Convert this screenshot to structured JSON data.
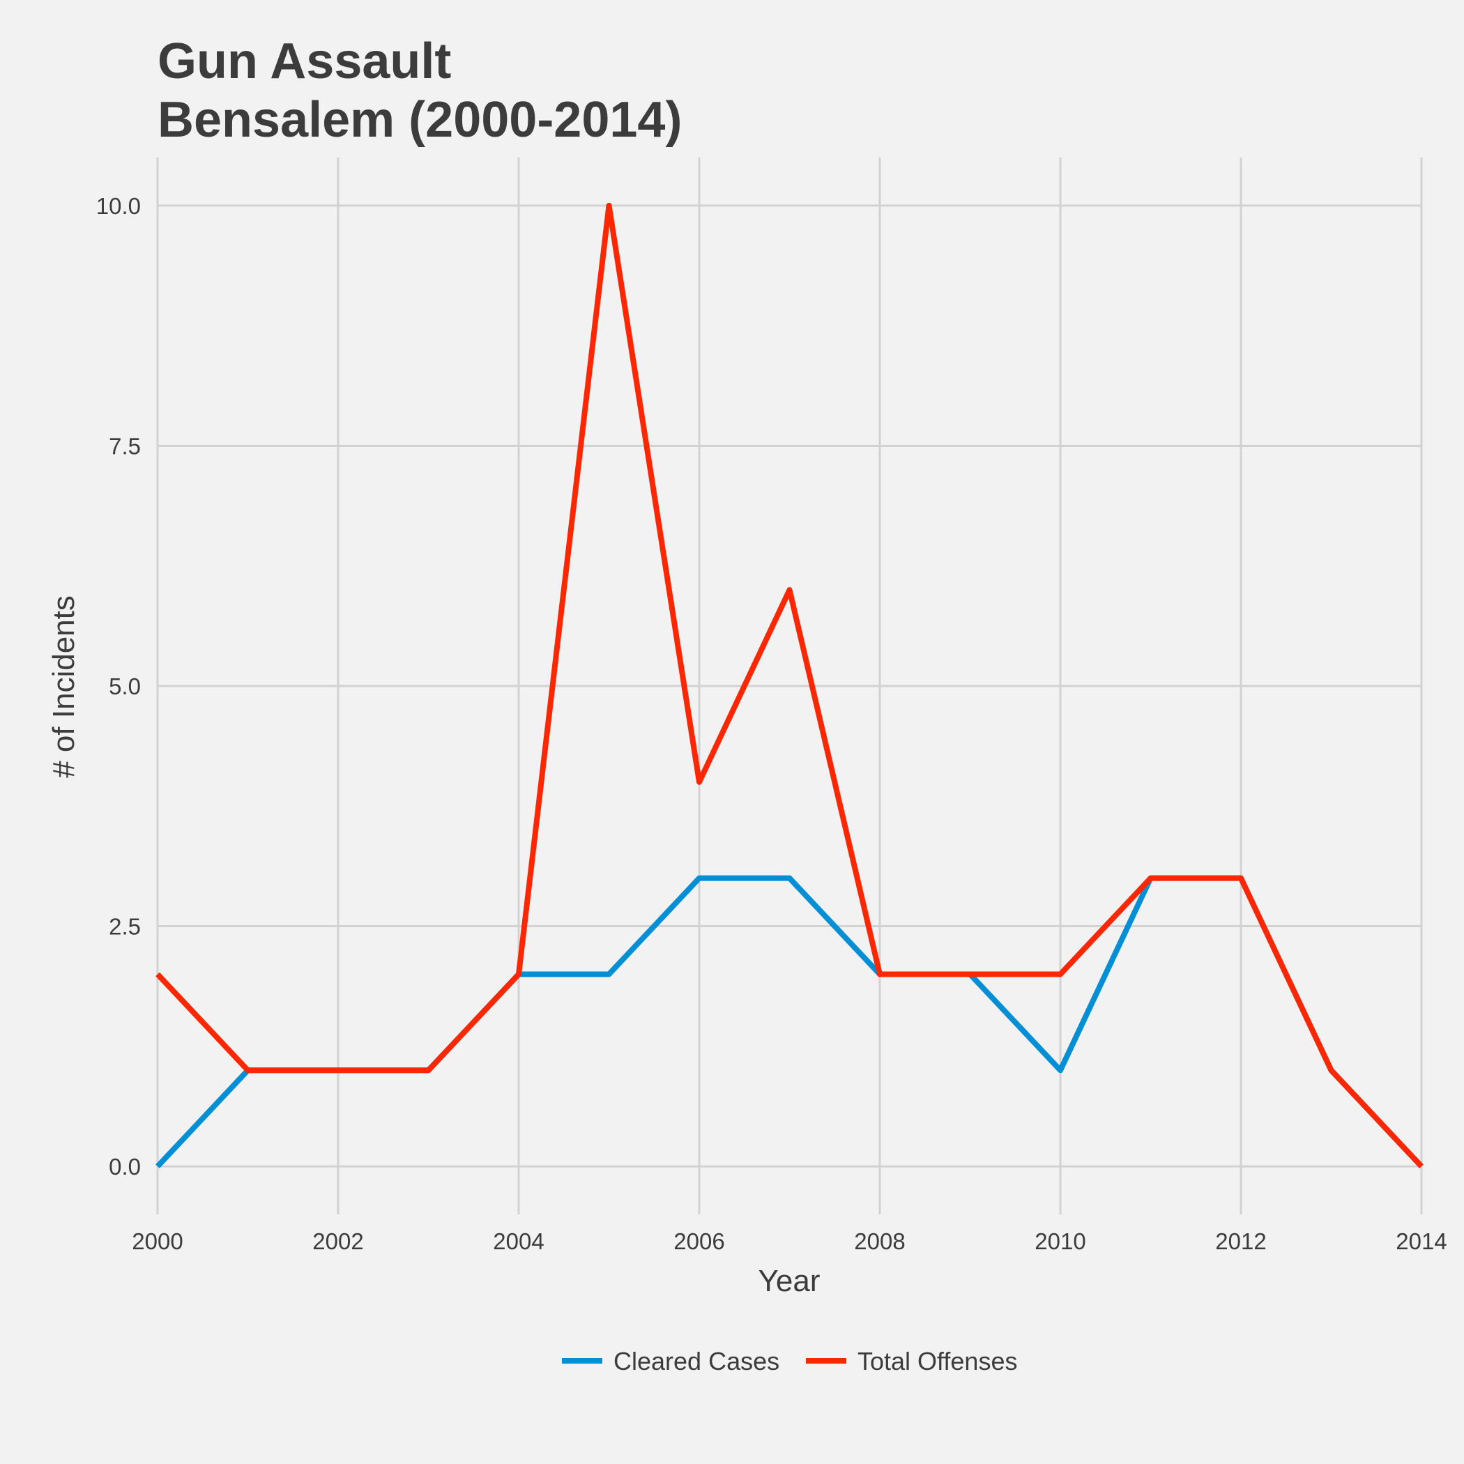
{
  "chart_data": {
    "type": "line",
    "title_lines": [
      "Gun Assault",
      "Bensalem (2000-2014)"
    ],
    "xlabel": "Year",
    "ylabel": "# of Incidents",
    "x": [
      2000,
      2001,
      2002,
      2003,
      2004,
      2005,
      2006,
      2007,
      2008,
      2009,
      2010,
      2011,
      2012,
      2013,
      2014
    ],
    "xlim": [
      2000,
      2014
    ],
    "ylim": [
      -0.5,
      10.5
    ],
    "x_ticks": [
      2000,
      2002,
      2004,
      2006,
      2008,
      2010,
      2012,
      2014
    ],
    "y_ticks": [
      0,
      2.5,
      5,
      7.5,
      10
    ],
    "x_tick_labels": [
      "2000",
      "2002",
      "2004",
      "2006",
      "2008",
      "2010",
      "2012",
      "2014"
    ],
    "y_tick_labels": [
      "0.0",
      "2.5",
      "5.0",
      "7.5",
      "10.0"
    ],
    "grid": true,
    "legend_position": "bottom",
    "series": [
      {
        "name": "Cleared Cases",
        "color": "#008fd5",
        "values": [
          0,
          1,
          1,
          1,
          2,
          2,
          3,
          3,
          2,
          2,
          1,
          3,
          3,
          1,
          0
        ]
      },
      {
        "name": "Total Offenses",
        "color": "#ff2700",
        "values": [
          2,
          1,
          1,
          1,
          2,
          10,
          4,
          6,
          2,
          2,
          2,
          3,
          3,
          1,
          0
        ]
      }
    ]
  }
}
